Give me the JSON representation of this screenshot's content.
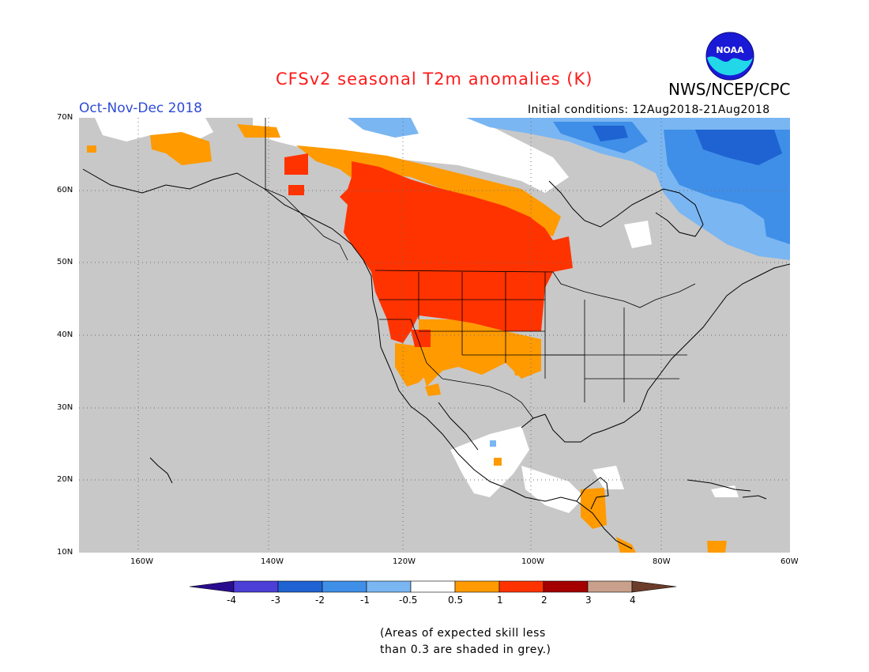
{
  "title": "CFSv2 seasonal T2m anomalies (K)",
  "agency": "NWS/NCEP/CPC",
  "logo_text": "NOAA",
  "period": "Oct-Nov-Dec 2018",
  "initial_conditions": "Initial conditions: 12Aug2018-21Aug2018",
  "lat_labels": [
    "70N",
    "60N",
    "50N",
    "40N",
    "30N",
    "20N",
    "10N"
  ],
  "lon_labels": [
    "160W",
    "140W",
    "120W",
    "100W",
    "80W",
    "60W"
  ],
  "colorbar": {
    "labels": [
      "-4",
      "-3",
      "-2",
      "-1",
      "-0.5",
      "0.5",
      "1",
      "2",
      "3",
      "4"
    ],
    "colors": [
      "#2a0d8f",
      "#4b3fd6",
      "#1f63d2",
      "#3f8fe8",
      "#7ab6f2",
      "#ffffff",
      "#ff9a00",
      "#ff3300",
      "#a50000",
      "#c8a08c",
      "#6b3c2a"
    ]
  },
  "note_lines": [
    "(Areas of expected skill less",
    "than 0.3 are shaded in grey.)"
  ],
  "colors": {
    "grey_mask": "#c8c8c8",
    "warm_orange": "#ff9a00",
    "warm_red": "#ff3300",
    "cool_light": "#7ab6f2",
    "cool_mid": "#3f8fe8",
    "cool_dark": "#1f63d2"
  }
}
